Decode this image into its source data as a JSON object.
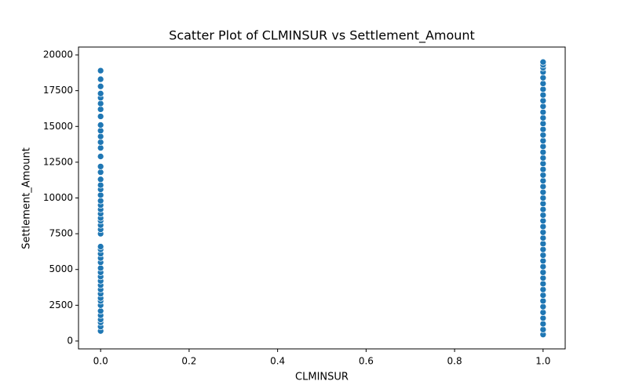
{
  "chart_data": {
    "type": "scatter",
    "title": "Scatter Plot of CLMINSUR vs Settlement_Amount",
    "x_label": "CLMINSUR",
    "y_label": "Settlement_Amount",
    "color": "#1f77b4",
    "xlim": [
      -0.05,
      1.05
    ],
    "ylim": [
      -550,
      20550
    ],
    "xticks": [
      {
        "value": 0,
        "label": "0.0"
      },
      {
        "value": 0.2,
        "label": "0.2"
      },
      {
        "value": 0.4,
        "label": "0.4"
      },
      {
        "value": 0.6,
        "label": "0.6"
      },
      {
        "value": 0.8,
        "label": "0.8"
      },
      {
        "value": 1,
        "label": "1.0"
      }
    ],
    "yticks": [
      0,
      2500,
      5000,
      7500,
      10000,
      12500,
      15000,
      17500,
      20000
    ],
    "x": [
      0,
      0,
      0,
      0,
      0,
      0,
      0,
      0,
      0,
      0,
      0,
      0,
      0,
      0,
      0,
      0,
      0,
      0,
      0,
      0,
      0,
      0,
      0,
      0,
      0,
      0,
      0,
      0,
      0,
      0,
      0,
      0,
      0,
      0,
      0,
      0,
      0,
      0,
      0,
      0,
      0,
      0,
      0,
      0,
      0,
      0,
      0,
      0,
      0,
      0,
      1,
      1,
      1,
      1,
      1,
      1,
      1,
      1,
      1,
      1,
      1,
      1,
      1,
      1,
      1,
      1,
      1,
      1,
      1,
      1,
      1,
      1,
      1,
      1,
      1,
      1,
      1,
      1,
      1,
      1,
      1,
      1,
      1,
      1,
      1,
      1,
      1,
      1,
      1,
      1,
      1,
      1,
      1,
      1,
      1,
      1,
      1,
      1,
      1,
      1
    ],
    "y": [
      700,
      1000,
      1300,
      1500,
      1800,
      2100,
      2500,
      2800,
      3000,
      3300,
      3600,
      3900,
      4200,
      4500,
      4800,
      5100,
      5500,
      5800,
      6100,
      6400,
      6600,
      7500,
      7800,
      8100,
      8400,
      8600,
      8900,
      9200,
      9500,
      9800,
      10200,
      10600,
      10900,
      11300,
      11800,
      12200,
      12900,
      13500,
      13900,
      14300,
      14700,
      15100,
      15700,
      16200,
      16600,
      17000,
      17300,
      17800,
      18300,
      18900,
      450,
      800,
      1200,
      1600,
      2000,
      2400,
      2800,
      3200,
      3600,
      4000,
      4400,
      4800,
      5200,
      5600,
      6000,
      6400,
      6800,
      7200,
      7600,
      8000,
      8400,
      8800,
      9200,
      9600,
      10000,
      10400,
      10800,
      11200,
      11600,
      12000,
      12400,
      12800,
      13200,
      13600,
      14000,
      14400,
      14800,
      15200,
      15600,
      16000,
      16400,
      16800,
      17200,
      17600,
      18000,
      18400,
      18800,
      19100,
      19300,
      19500
    ]
  }
}
